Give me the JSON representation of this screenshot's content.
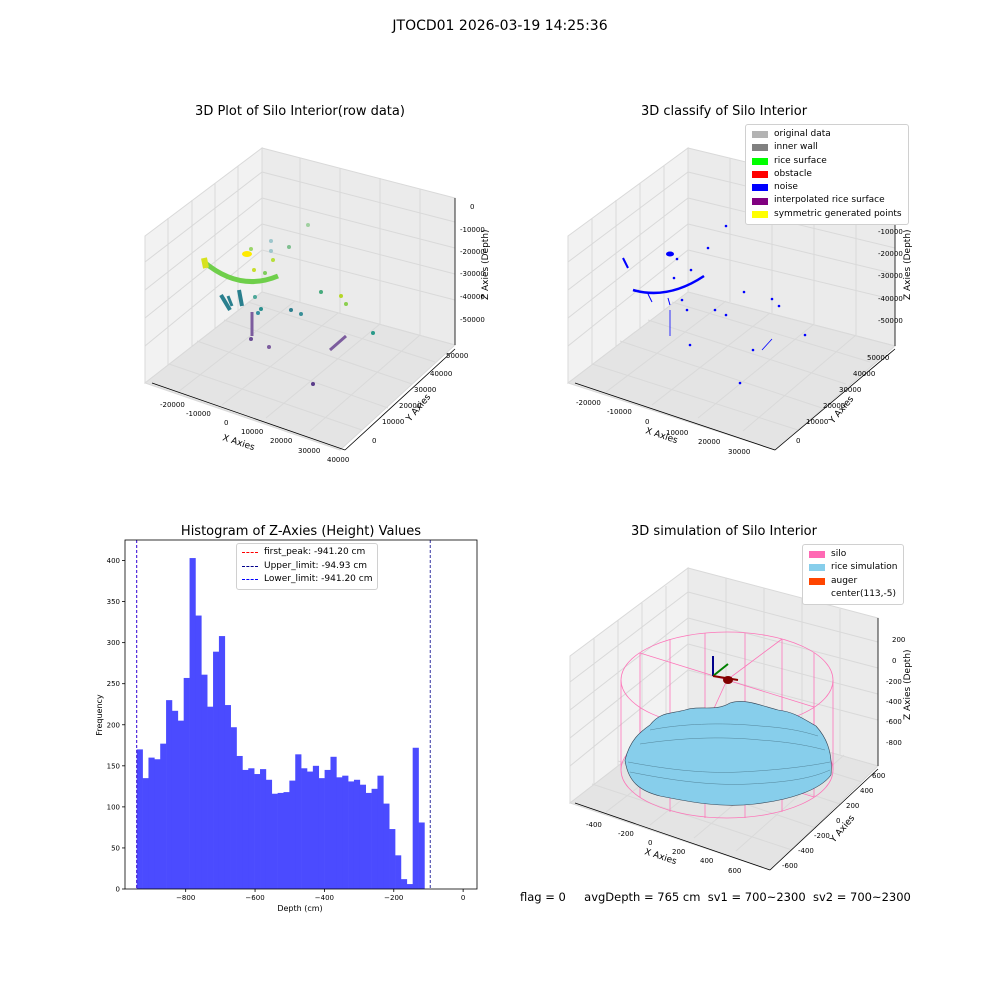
{
  "figure": {
    "suptitle": "JTOCD01 2026-03-19 14:25:36"
  },
  "panels": {
    "raw3d": {
      "title": "3D Plot of Silo Interior(row data)",
      "xlabel": "X Axies",
      "ylabel": "Y Axies",
      "zlabel": "Z Axies (Depth)",
      "xticks": [
        "-20000",
        "-10000",
        "0",
        "10000",
        "20000",
        "30000",
        "40000"
      ],
      "yticks": [
        "0",
        "10000",
        "20000",
        "30000",
        "40000",
        "50000"
      ],
      "zticks": [
        "0",
        "-10000",
        "-20000",
        "-30000",
        "-40000",
        "-50000"
      ]
    },
    "classify3d": {
      "title": "3D classify of Silo Interior",
      "xlabel": "X Axies",
      "ylabel": "Y Axies",
      "zlabel": "Z Axies (Depth)",
      "xticks": [
        "-20000",
        "-10000",
        "0",
        "10000",
        "20000",
        "30000"
      ],
      "yticks": [
        "0",
        "10000",
        "20000",
        "30000",
        "40000",
        "50000"
      ],
      "zticks": [
        "0",
        "-10000",
        "-20000",
        "-30000",
        "-40000",
        "-50000"
      ],
      "legend": [
        {
          "label": "original data",
          "color": "#b3b3b3"
        },
        {
          "label": "inner wall",
          "color": "#808080"
        },
        {
          "label": "rice surface",
          "color": "#00ff00"
        },
        {
          "label": "obstacle",
          "color": "#ff0000"
        },
        {
          "label": "noise",
          "color": "#0000ff"
        },
        {
          "label": "interpolated rice surface",
          "color": "#800080"
        },
        {
          "label": "symmetric generated points",
          "color": "#ffff00"
        }
      ]
    },
    "histogram": {
      "title": "Histogram of Z-Axies (Height) Values",
      "xlabel": "Depth (cm)",
      "ylabel": "Frequency",
      "legend": [
        {
          "label": "first_peak: -941.20 cm",
          "color": "#ff0000"
        },
        {
          "label": "Upper_limit: -94.93 cm",
          "color": "#00008b"
        },
        {
          "label": "Lower_limit: -941.20 cm",
          "color": "#0000ff"
        }
      ]
    },
    "sim3d": {
      "title": "3D simulation of Silo Interior",
      "xlabel": "X Axies",
      "ylabel": "Y Axies",
      "zlabel": "Z Axies (Depth)",
      "xticks": [
        "-400",
        "-200",
        "0",
        "200",
        "400",
        "600"
      ],
      "yticks": [
        "-600",
        "-400",
        "-200",
        "0",
        "200",
        "400",
        "600"
      ],
      "zticks": [
        "200",
        "0",
        "-200",
        "-400",
        "-600",
        "-800"
      ],
      "legend": [
        {
          "label": "silo",
          "color": "#ff69b4"
        },
        {
          "label": "rice simulation",
          "color": "#87ceeb"
        },
        {
          "label": "auger",
          "color": "#ff4500"
        },
        {
          "label": "center(113,-5)",
          "color": "#ffffff"
        }
      ]
    }
  },
  "footer": {
    "flag": "flag = 0",
    "avg": "avgDepth = 765 cm",
    "sv1": "sv1 = 700~2300",
    "sv2": "sv2 = 700~2300"
  },
  "chart_data": [
    {
      "type": "bar",
      "title": "Histogram of Z-Axies (Height) Values",
      "xlabel": "Depth (cm)",
      "ylabel": "Frequency",
      "xlim": [
        -975,
        40
      ],
      "ylim": [
        0,
        425
      ],
      "xticks": [
        -800,
        -600,
        -400,
        -200,
        0
      ],
      "yticks": [
        0,
        50,
        100,
        150,
        200,
        250,
        300,
        350,
        400
      ],
      "bin_start": -941.2,
      "bin_width": 16.93,
      "values": [
        170,
        135,
        160,
        158,
        177,
        230,
        217,
        205,
        257,
        403,
        333,
        261,
        222,
        289,
        308,
        224,
        197,
        162,
        145,
        147,
        140,
        146,
        133,
        116,
        117,
        118,
        132,
        164,
        147,
        143,
        150,
        135,
        145,
        161,
        136,
        138,
        131,
        133,
        127,
        117,
        122,
        138,
        104,
        73,
        41,
        12,
        6,
        172,
        81
      ],
      "color": "#4b4bff",
      "vlines": [
        {
          "name": "first_peak: -941.20 cm",
          "x": -941.2,
          "color": "#ff0000"
        },
        {
          "name": "Upper_limit: -94.93 cm",
          "x": -94.93,
          "color": "#00008b"
        },
        {
          "name": "Lower_limit: -941.20 cm",
          "x": -941.2,
          "color": "#0000ff"
        }
      ],
      "legend_position": "top-center"
    }
  ]
}
